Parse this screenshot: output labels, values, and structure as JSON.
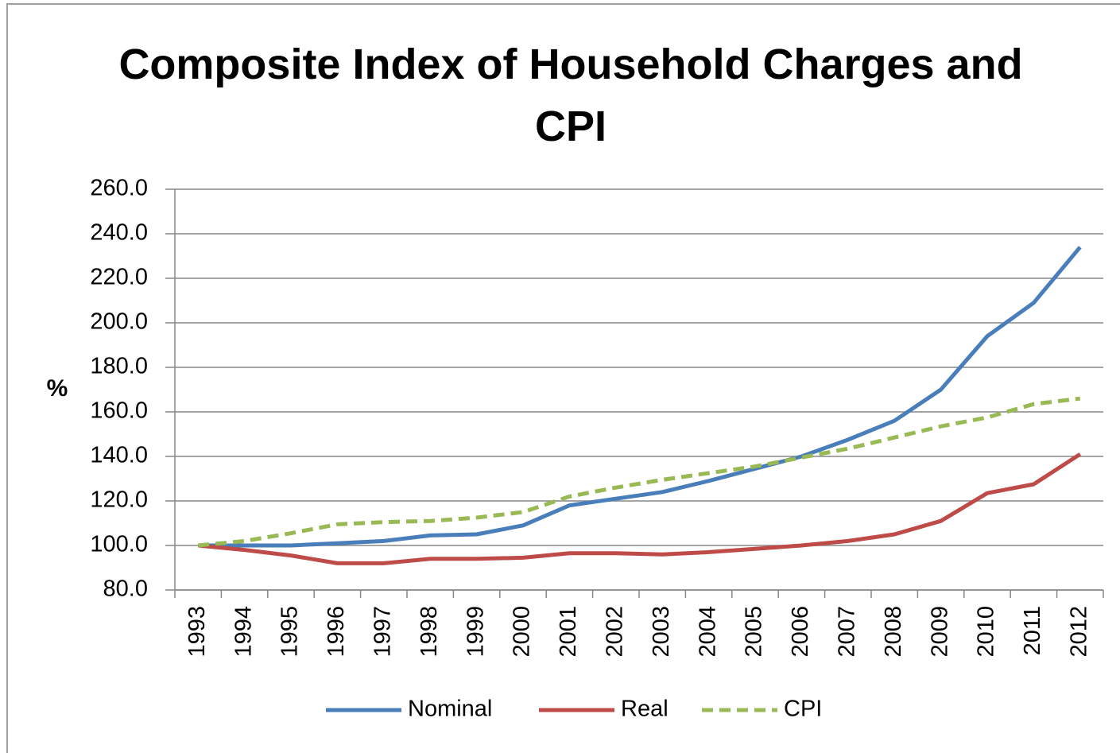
{
  "chart_data": {
    "type": "line",
    "title": "Composite Index of Household Charges and CPI",
    "y_label": "%",
    "categories": [
      "1993",
      "1994",
      "1995",
      "1996",
      "1997",
      "1998",
      "1999",
      "2000",
      "2001",
      "2002",
      "2003",
      "2004",
      "2005",
      "2006",
      "2007",
      "2008",
      "2009",
      "2010",
      "2011",
      "2012"
    ],
    "series": [
      {
        "name": "Nominal",
        "color": "#4a7ebb",
        "line_style": "solid",
        "values": [
          100,
          100,
          100,
          101,
          102,
          104.5,
          105,
          109,
          118,
          121,
          124,
          129,
          134.5,
          140,
          147.5,
          156,
          170,
          194,
          209,
          234
        ]
      },
      {
        "name": "Real",
        "color": "#be4b48",
        "line_style": "solid",
        "values": [
          100,
          98,
          95.5,
          92,
          92,
          94,
          94,
          94.5,
          96.5,
          96.5,
          96,
          97,
          98.5,
          100,
          102,
          105,
          111,
          123.5,
          127.5,
          141
        ]
      },
      {
        "name": "CPI",
        "color": "#98b954",
        "line_style": "dashed",
        "values": [
          100,
          102,
          105.5,
          109.5,
          110.5,
          111,
          112.5,
          115,
          122,
          126,
          129.5,
          132.5,
          135.5,
          139.5,
          143.5,
          148.5,
          153.5,
          157.5,
          163.5,
          166
        ]
      }
    ],
    "ylim": [
      80,
      260
    ],
    "yticks": [
      {
        "value": 80,
        "label": "80.0"
      },
      {
        "value": 100,
        "label": "100.0"
      },
      {
        "value": 120,
        "label": "120.0"
      },
      {
        "value": 140,
        "label": "140.0"
      },
      {
        "value": 160,
        "label": "160.0"
      },
      {
        "value": 180,
        "label": "180.0"
      },
      {
        "value": 200,
        "label": "200.0"
      },
      {
        "value": 220,
        "label": "220.0"
      },
      {
        "value": 240,
        "label": "240.0"
      },
      {
        "value": 260,
        "label": "260.0"
      }
    ],
    "grid": true,
    "legend": "bottom"
  }
}
